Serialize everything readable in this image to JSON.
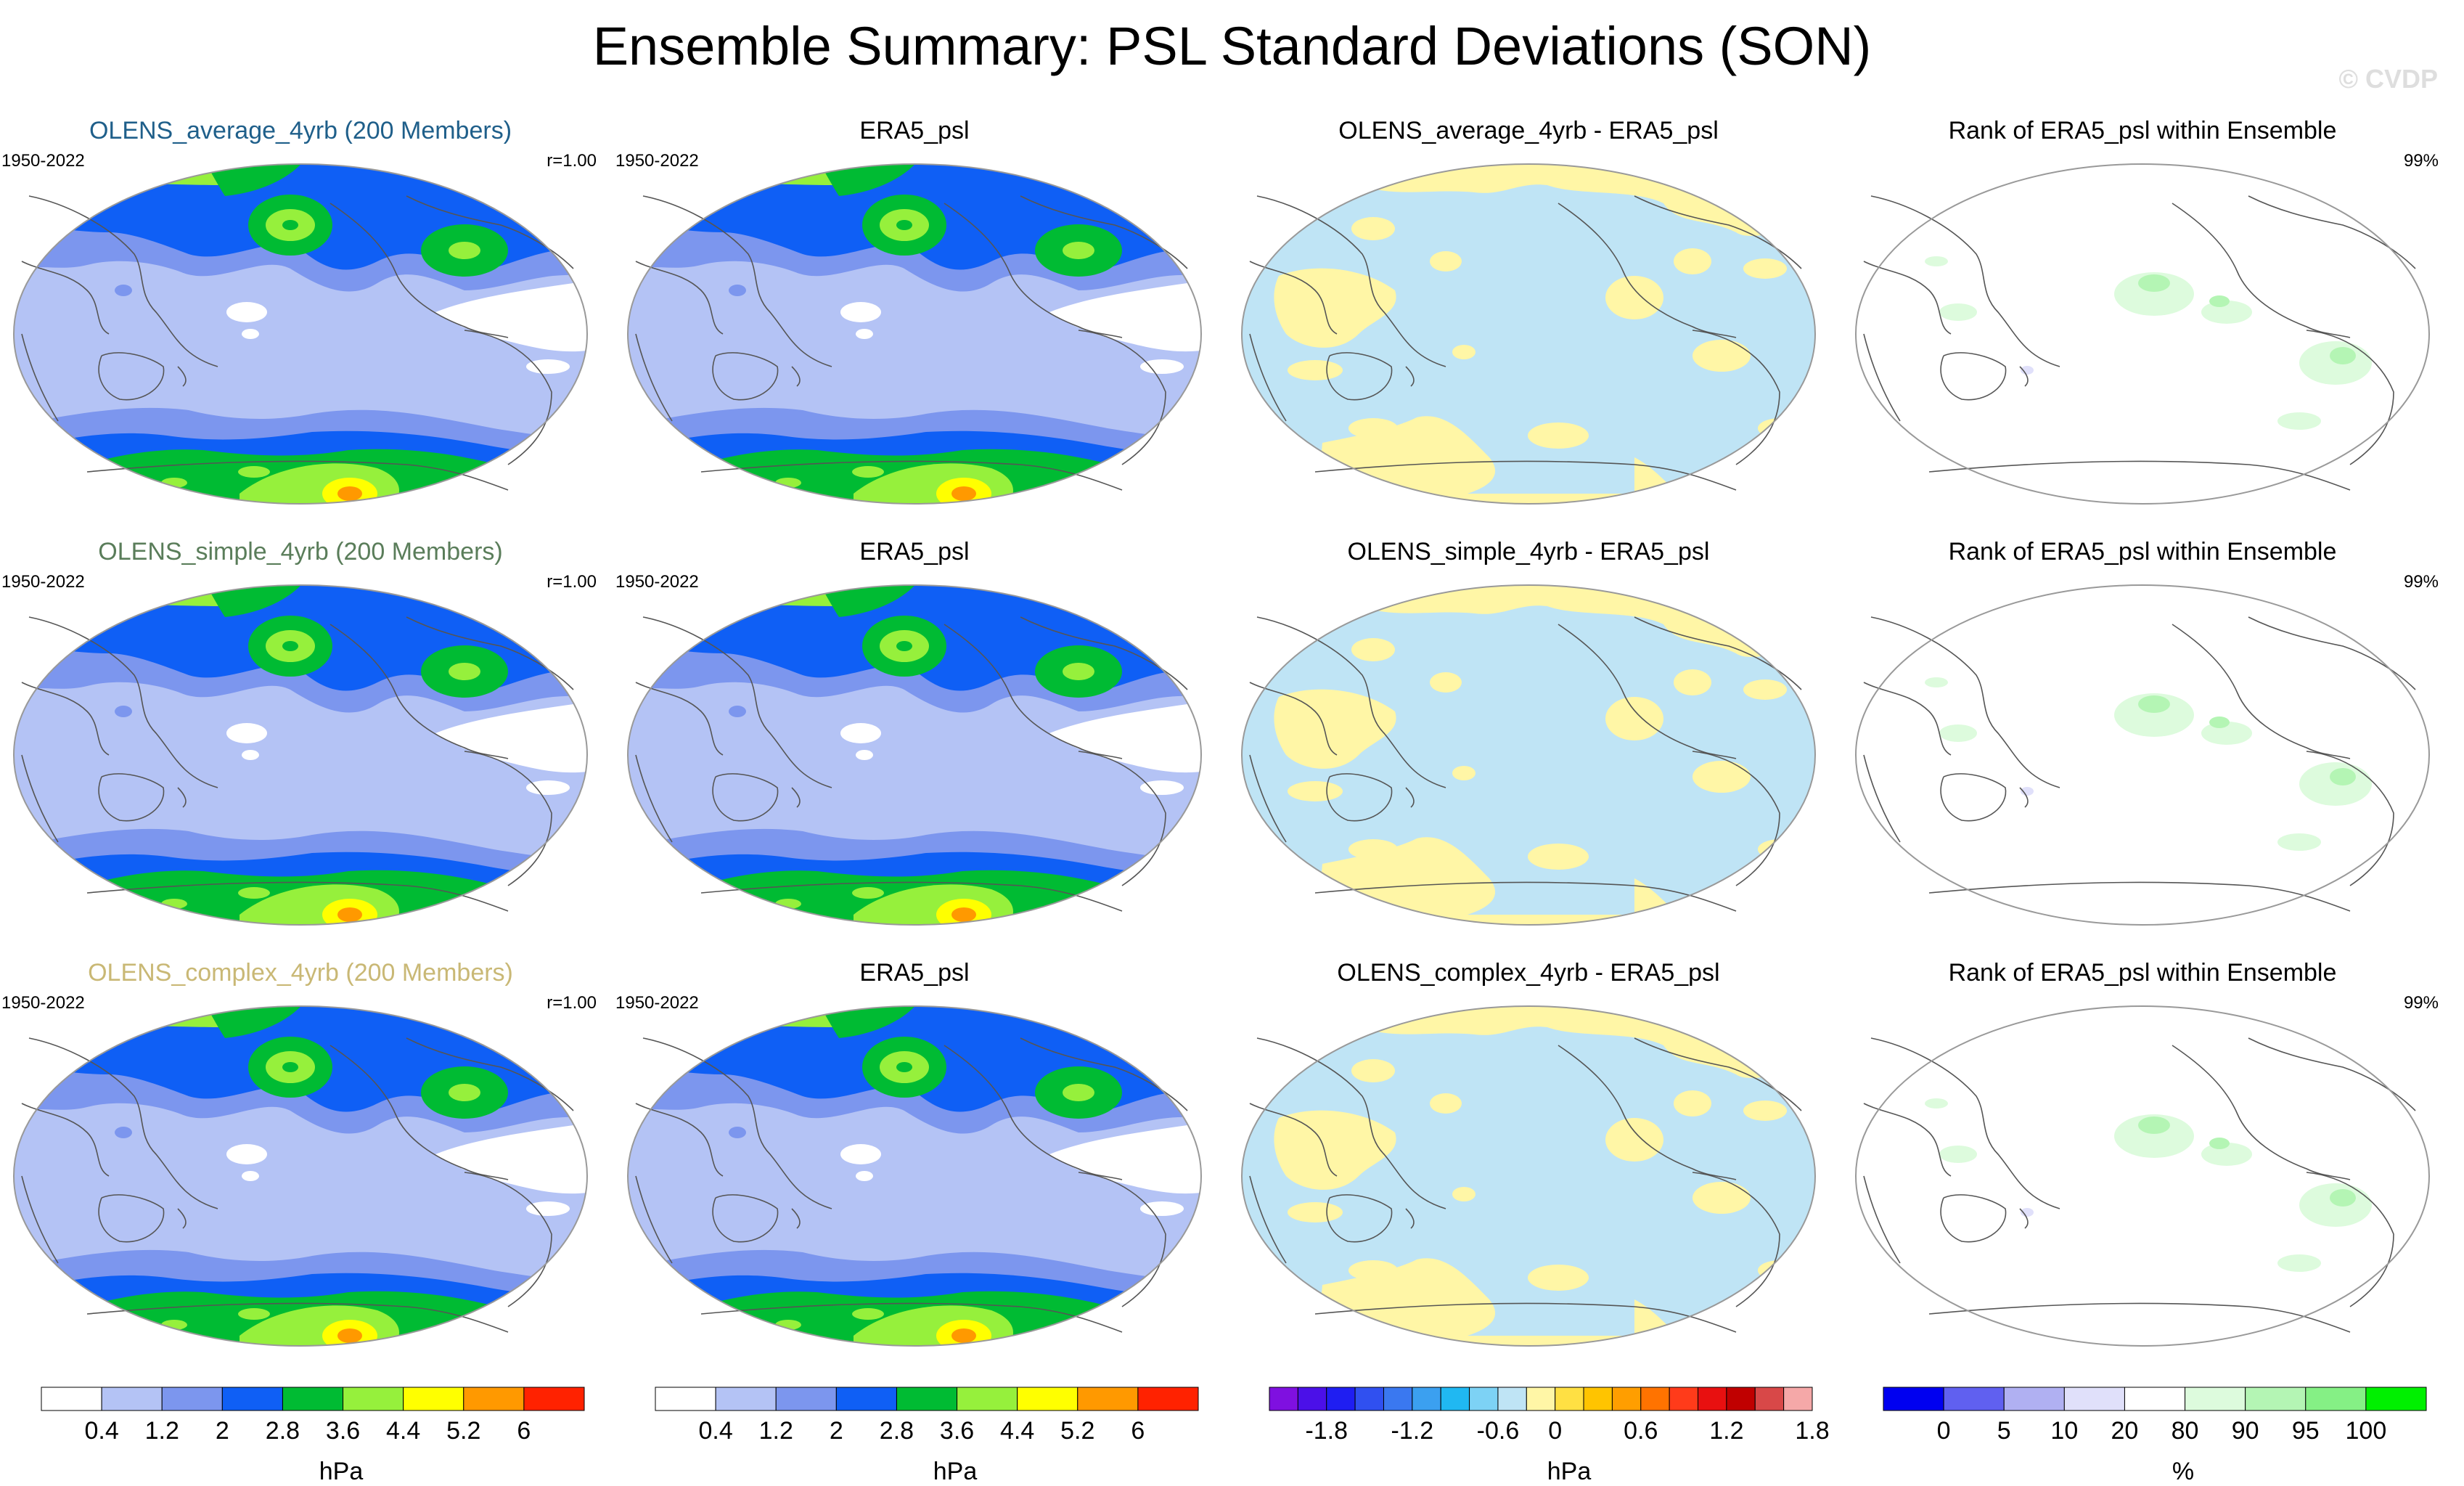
{
  "title": "Ensemble Summary: PSL Standard Deviations (SON)",
  "copyright": "© CVDP",
  "rows": [
    {
      "model_title": "OLENS_average_4yrb (200 Members)",
      "title_color": "#1f5f8a",
      "period": "1950-2022",
      "r": "r=1.00",
      "obs_title": "ERA5_psl",
      "obs_period": "1950-2022",
      "diff_title": "OLENS_average_4yrb - ERA5_psl",
      "rank_title": "Rank of ERA5_psl within Ensemble",
      "rank_pct": "99%"
    },
    {
      "model_title": "OLENS_simple_4yrb (200 Members)",
      "title_color": "#5a7d5a",
      "period": "1950-2022",
      "r": "r=1.00",
      "obs_title": "ERA5_psl",
      "obs_period": "1950-2022",
      "diff_title": "OLENS_simple_4yrb - ERA5_psl",
      "rank_title": "Rank of ERA5_psl within Ensemble",
      "rank_pct": "99%"
    },
    {
      "model_title": "OLENS_complex_4yrb (200 Members)",
      "title_color": "#c9b875",
      "period": "1950-2022",
      "r": "r=1.00",
      "obs_title": "ERA5_psl",
      "obs_period": "1950-2022",
      "diff_title": "OLENS_complex_4yrb - ERA5_psl",
      "rank_title": "Rank of ERA5_psl within Ensemble",
      "rank_pct": "99%"
    }
  ],
  "chart_data": [
    {
      "type": "heatmap",
      "projection": "robinson",
      "variable": "PSL standard deviation (SON)",
      "units": "hPa",
      "levels": [
        "0.4",
        "1.2",
        "2",
        "2.8",
        "3.6",
        "4.4",
        "5.2",
        "6"
      ],
      "colors": [
        "#ffffff",
        "#b4c3f5",
        "#7c96ee",
        "#0f5ff5",
        "#00bb33",
        "#96f03c",
        "#ffff00",
        "#ff9900",
        "#ff2200"
      ]
    },
    {
      "type": "heatmap",
      "projection": "robinson",
      "variable": "PSL std difference (model - ERA5)",
      "units": "hPa",
      "levels": [
        "-1.8",
        "-1.2",
        "-0.6",
        "0",
        "0.6",
        "1.2",
        "1.8"
      ],
      "label_bins": [
        2,
        5,
        8,
        10,
        13,
        16,
        19
      ],
      "colors": [
        "#7f10e0",
        "#4b10e8",
        "#1f1ef2",
        "#3050f0",
        "#3a78f0",
        "#3ba0f0",
        "#20b8f2",
        "#7dd2f5",
        "#bfe4f5",
        "#fff6a6",
        "#ffe043",
        "#ffc400",
        "#ff9e00",
        "#ff7300",
        "#ff3b1a",
        "#e81010",
        "#c00000",
        "#d84848",
        "#f5a8a8"
      ]
    },
    {
      "type": "heatmap",
      "projection": "robinson",
      "variable": "Rank of ERA5_psl within ensemble",
      "units": "%",
      "levels": [
        "0",
        "5",
        "10",
        "20",
        "80",
        "90",
        "95",
        "100"
      ],
      "colors": [
        "#0000f0",
        "#6060f0",
        "#b0b0f2",
        "#e0e0fa",
        "#ffffff",
        "#ddfbdd",
        "#b4f5b4",
        "#85f085",
        "#00f000"
      ]
    }
  ]
}
